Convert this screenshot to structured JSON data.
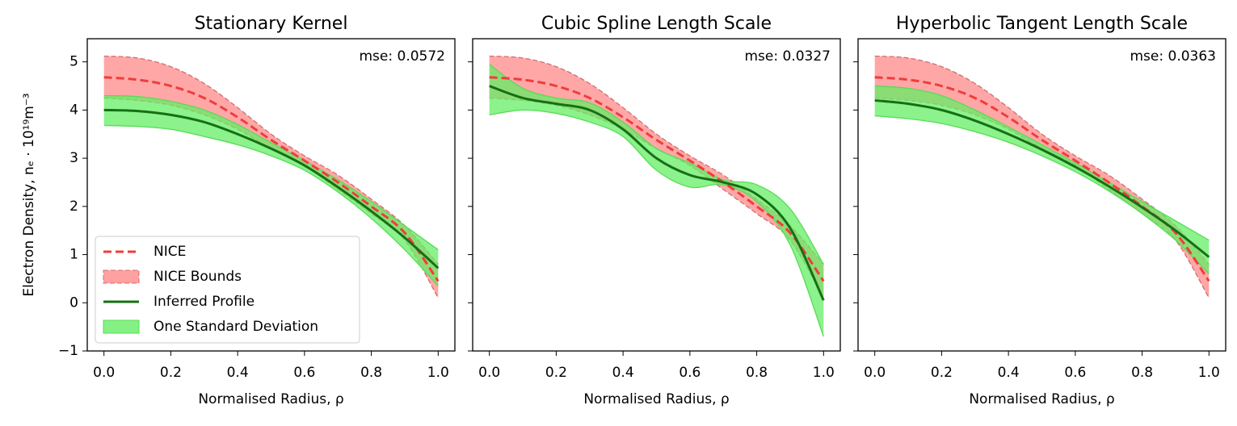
{
  "chart_data": [
    {
      "type": "line",
      "title": "Stationary Kernel",
      "annotation": "mse: 0.0572",
      "xlabel": "Normalised Radius, ρ",
      "ylabel": "Electron Density, nₑ · 10¹⁹m⁻³",
      "x": [
        0,
        0.1,
        0.2,
        0.3,
        0.4,
        0.5,
        0.6,
        0.7,
        0.8,
        0.9,
        1
      ],
      "xlim": [
        -0.05,
        1.05
      ],
      "ylim": [
        -1,
        5.48
      ],
      "xticks": [
        {
          "value": 0,
          "label": "0.0"
        },
        0.2,
        0.4,
        0.6,
        0.8,
        {
          "value": 1,
          "label": "1.0"
        }
      ],
      "yticks": [
        {
          "value": -1,
          "label": "−1"
        },
        0,
        1,
        2,
        3,
        4,
        5
      ],
      "ytick_labels": true,
      "legend": "lower left",
      "series": [
        {
          "name": "NICE",
          "color": "#f03c3c",
          "style": "dashed",
          "values": [
            4.68,
            4.63,
            4.5,
            4.25,
            3.85,
            3.38,
            2.95,
            2.5,
            2.0,
            1.45,
            0.45
          ]
        },
        {
          "name": "NICE Bounds",
          "color": "#ff8a8a",
          "upper": [
            5.12,
            5.08,
            4.9,
            4.55,
            4.05,
            3.5,
            3.05,
            2.65,
            2.15,
            1.6,
            0.8
          ],
          "lower": [
            4.25,
            4.2,
            4.1,
            3.9,
            3.6,
            3.2,
            2.85,
            2.35,
            1.85,
            1.3,
            0.1
          ]
        },
        {
          "name": "Inferred Profile",
          "color": "#157015",
          "style": "solid",
          "values": [
            4.0,
            3.98,
            3.9,
            3.75,
            3.5,
            3.2,
            2.85,
            2.4,
            1.9,
            1.35,
            0.72
          ]
        },
        {
          "name": "One Standard Deviation",
          "color": "#66ee66",
          "upper": [
            4.3,
            4.28,
            4.18,
            4.0,
            3.7,
            3.32,
            2.95,
            2.55,
            2.1,
            1.6,
            1.1
          ],
          "lower": [
            3.68,
            3.66,
            3.6,
            3.45,
            3.28,
            3.05,
            2.75,
            2.3,
            1.75,
            1.1,
            0.35
          ]
        }
      ]
    },
    {
      "type": "line",
      "title": "Cubic Spline Length Scale",
      "annotation": "mse: 0.0327",
      "xlabel": "Normalised Radius, ρ",
      "x": [
        0,
        0.1,
        0.2,
        0.3,
        0.4,
        0.5,
        0.6,
        0.7,
        0.8,
        0.9,
        1
      ],
      "xlim": [
        -0.05,
        1.05
      ],
      "ylim": [
        -1,
        5.48
      ],
      "xticks": [
        {
          "value": 0,
          "label": "0.0"
        },
        0.2,
        0.4,
        0.6,
        0.8,
        {
          "value": 1,
          "label": "1.0"
        }
      ],
      "yticks": [
        -1,
        0,
        1,
        2,
        3,
        4,
        5
      ],
      "ytick_labels": false,
      "series": [
        {
          "color": "#f03c3c",
          "style": "dashed",
          "values": [
            4.68,
            4.63,
            4.5,
            4.25,
            3.85,
            3.38,
            2.95,
            2.5,
            2.0,
            1.45,
            0.45
          ]
        },
        {
          "color": "#ff8a8a",
          "upper": [
            5.12,
            5.08,
            4.9,
            4.55,
            4.05,
            3.5,
            3.05,
            2.65,
            2.15,
            1.6,
            0.8
          ],
          "lower": [
            4.25,
            4.2,
            4.1,
            3.9,
            3.6,
            3.2,
            2.85,
            2.35,
            1.85,
            1.3,
            0.1
          ]
        },
        {
          "color": "#157015",
          "style": "solid",
          "values": [
            4.5,
            4.25,
            4.13,
            4.0,
            3.6,
            3.0,
            2.65,
            2.5,
            2.25,
            1.55,
            0.05
          ]
        },
        {
          "color": "#66ee66",
          "upper": [
            4.95,
            4.45,
            4.25,
            4.15,
            3.75,
            3.2,
            2.9,
            2.55,
            2.45,
            1.95,
            0.8
          ],
          "lower": [
            3.9,
            4.0,
            3.93,
            3.75,
            3.45,
            2.75,
            2.4,
            2.45,
            2.1,
            1.2,
            -0.7
          ]
        }
      ]
    },
    {
      "type": "line",
      "title": "Hyperbolic Tangent Length Scale",
      "annotation": "mse: 0.0363",
      "xlabel": "Normalised Radius, ρ",
      "x": [
        0,
        0.1,
        0.2,
        0.3,
        0.4,
        0.5,
        0.6,
        0.7,
        0.8,
        0.9,
        1
      ],
      "xlim": [
        -0.05,
        1.05
      ],
      "ylim": [
        -1,
        5.48
      ],
      "xticks": [
        {
          "value": 0,
          "label": "0.0"
        },
        0.2,
        0.4,
        0.6,
        0.8,
        {
          "value": 1,
          "label": "1.0"
        }
      ],
      "yticks": [
        -1,
        0,
        1,
        2,
        3,
        4,
        5
      ],
      "ytick_labels": false,
      "series": [
        {
          "color": "#f03c3c",
          "style": "dashed",
          "values": [
            4.68,
            4.63,
            4.5,
            4.25,
            3.85,
            3.38,
            2.95,
            2.5,
            2.0,
            1.45,
            0.45
          ]
        },
        {
          "color": "#ff8a8a",
          "upper": [
            5.12,
            5.08,
            4.9,
            4.55,
            4.05,
            3.5,
            3.05,
            2.65,
            2.15,
            1.6,
            0.8
          ],
          "lower": [
            4.25,
            4.2,
            4.1,
            3.9,
            3.6,
            3.2,
            2.85,
            2.35,
            1.85,
            1.3,
            0.1
          ]
        },
        {
          "color": "#157015",
          "style": "solid",
          "values": [
            4.2,
            4.13,
            4.0,
            3.78,
            3.5,
            3.18,
            2.82,
            2.42,
            1.98,
            1.5,
            0.95
          ]
        },
        {
          "color": "#66ee66",
          "upper": [
            4.5,
            4.45,
            4.3,
            4.0,
            3.65,
            3.28,
            2.9,
            2.5,
            2.1,
            1.7,
            1.3
          ],
          "lower": [
            3.88,
            3.82,
            3.72,
            3.55,
            3.33,
            3.05,
            2.72,
            2.32,
            1.85,
            1.3,
            0.6
          ]
        }
      ]
    }
  ]
}
